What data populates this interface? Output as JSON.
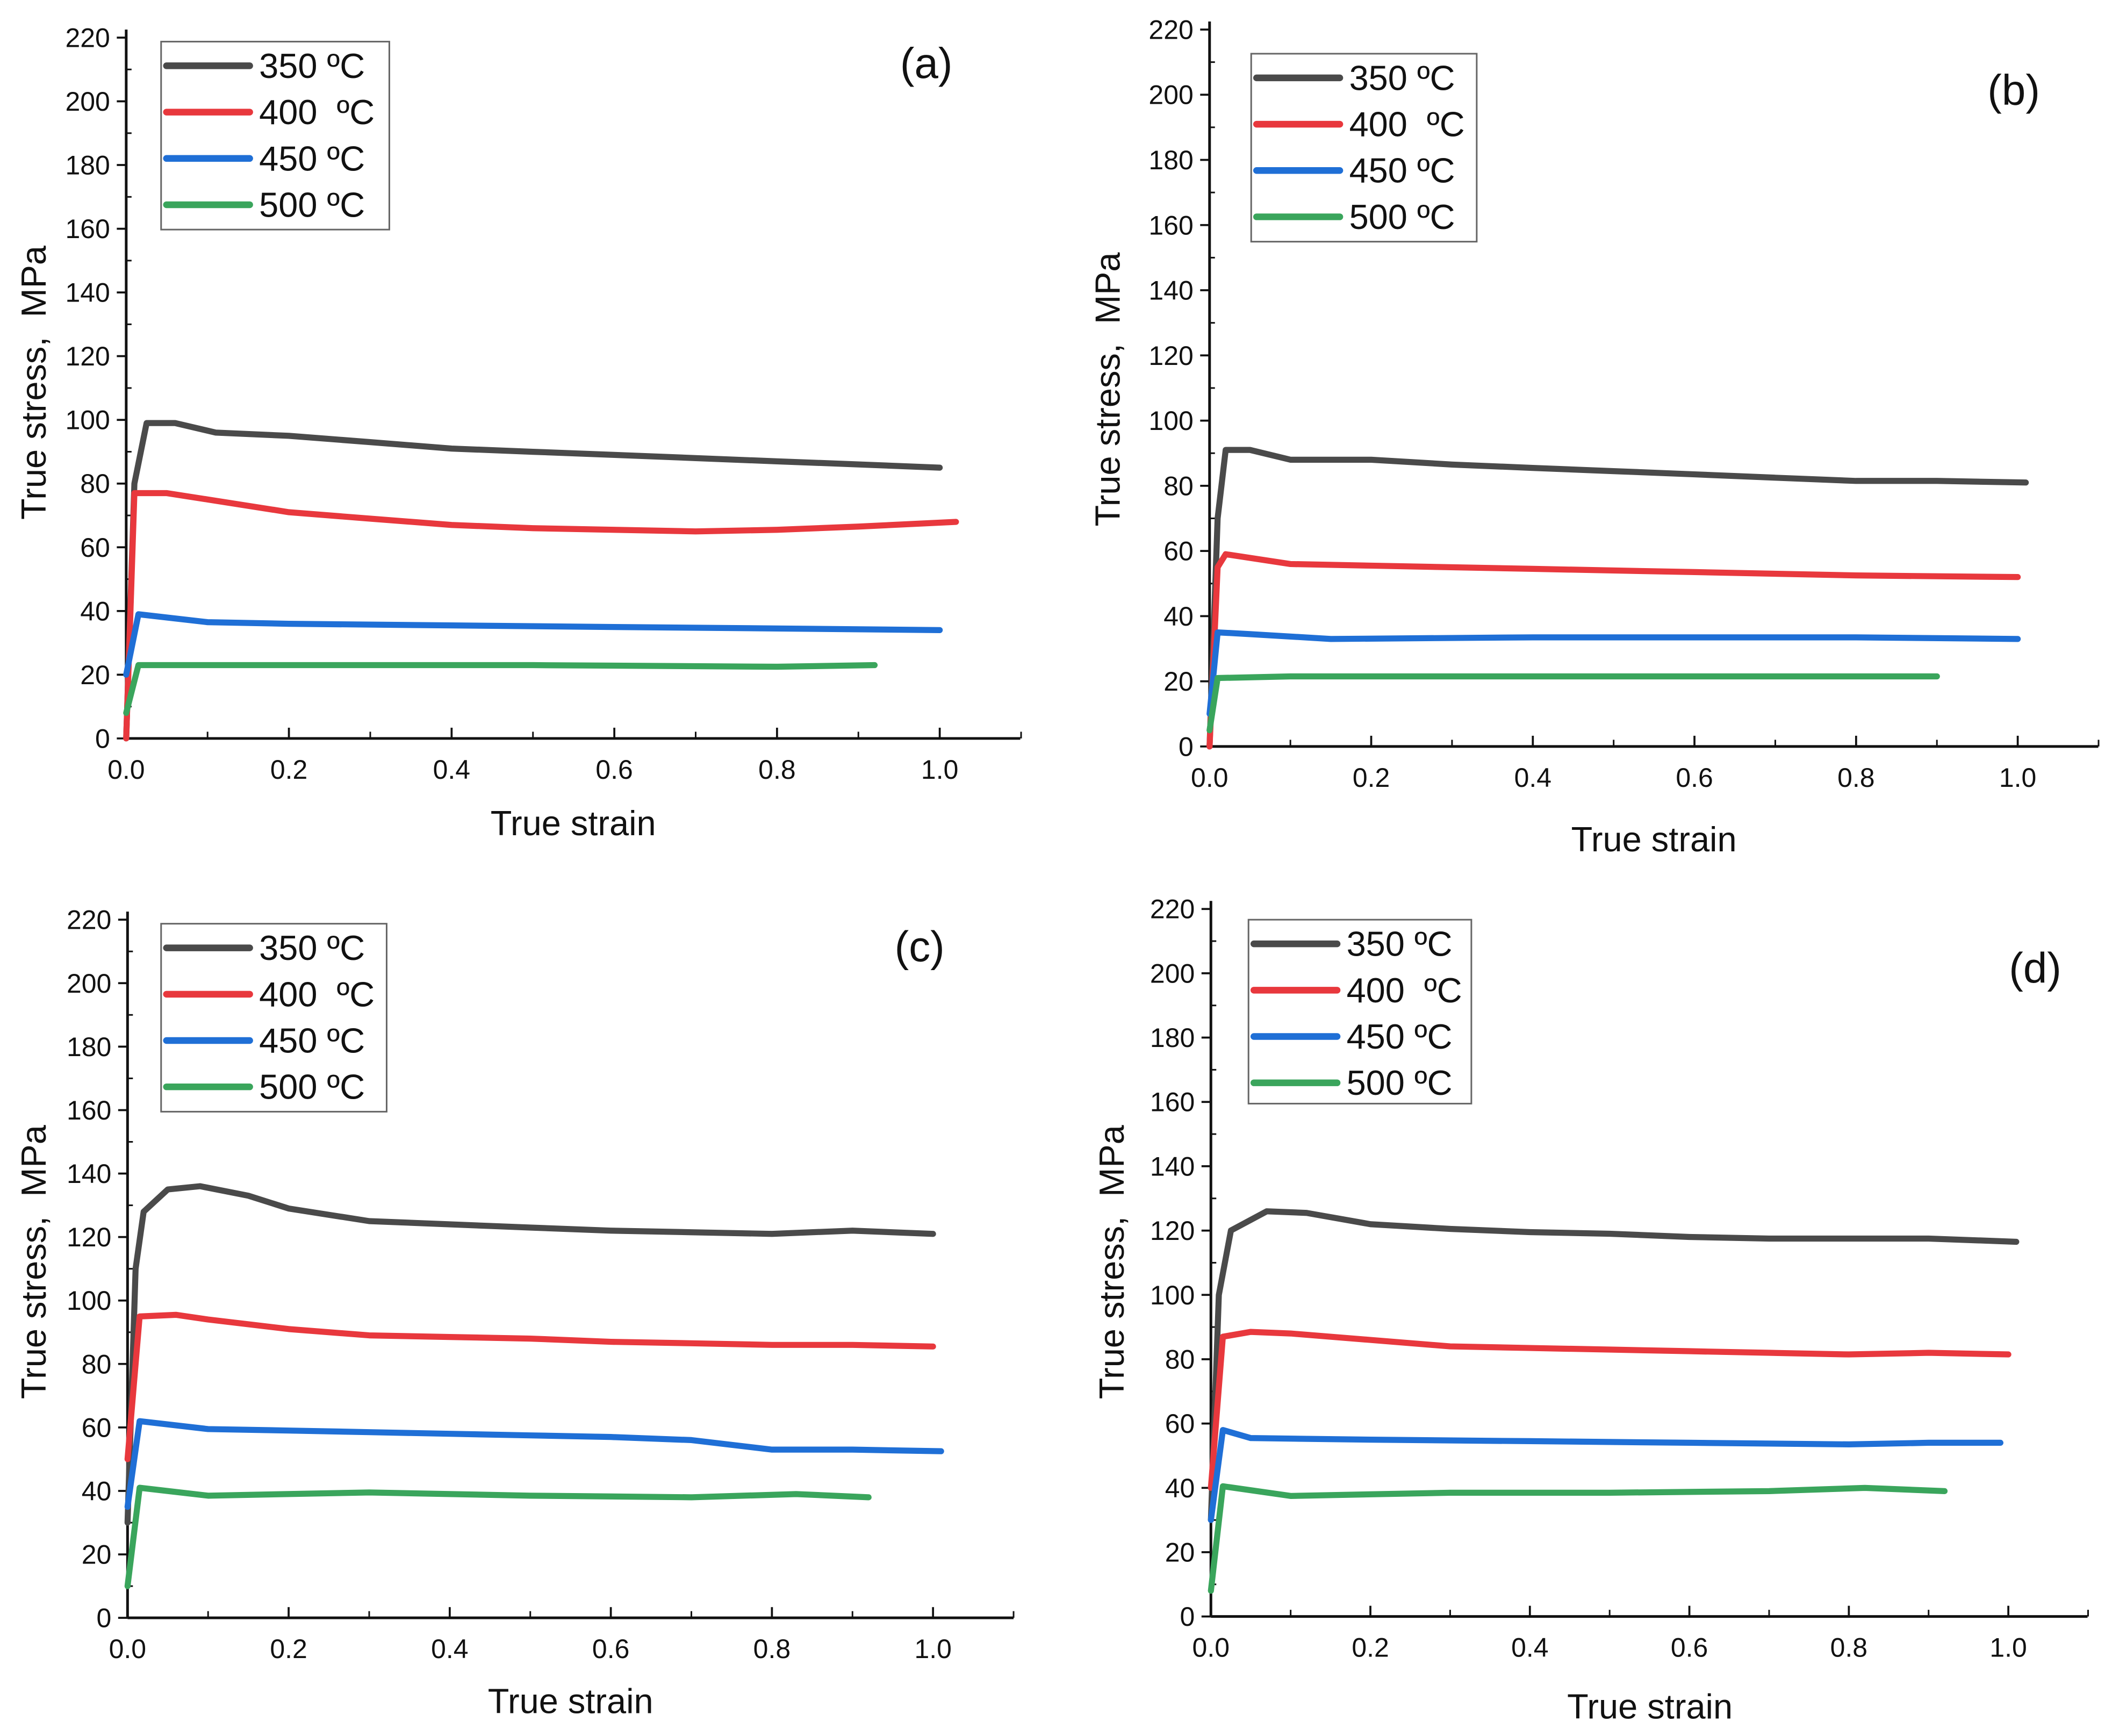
{
  "chart_data": [
    {
      "type": "line",
      "panel_label": "(a)",
      "xlabel": "True strain",
      "ylabel": "True stress,  MPa",
      "xlim": [
        0,
        1.1
      ],
      "ylim": [
        0,
        220
      ],
      "xticks": [
        "0.0",
        "0.2",
        "0.4",
        "0.6",
        "0.8",
        "1.0"
      ],
      "yticks": [
        "0",
        "20",
        "40",
        "60",
        "80",
        "100",
        "120",
        "140",
        "160",
        "180",
        "200",
        "220"
      ],
      "legend_position": "top-left",
      "series": [
        {
          "name": "350 ºC",
          "color": "#4a4a4a",
          "points": [
            [
              0,
              0
            ],
            [
              0.01,
              80
            ],
            [
              0.025,
              99
            ],
            [
              0.06,
              99
            ],
            [
              0.11,
              96
            ],
            [
              0.2,
              95
            ],
            [
              0.3,
              93
            ],
            [
              0.4,
              91
            ],
            [
              0.5,
              90
            ],
            [
              0.6,
              89
            ],
            [
              0.7,
              88
            ],
            [
              0.8,
              87
            ],
            [
              0.9,
              86
            ],
            [
              1.0,
              85
            ]
          ]
        },
        {
          "name": "400  ºC",
          "color": "#e8383d",
          "points": [
            [
              0,
              0
            ],
            [
              0.01,
              77
            ],
            [
              0.05,
              77
            ],
            [
              0.1,
              75
            ],
            [
              0.2,
              71
            ],
            [
              0.3,
              69
            ],
            [
              0.4,
              67
            ],
            [
              0.5,
              66
            ],
            [
              0.6,
              65.5
            ],
            [
              0.7,
              65
            ],
            [
              0.8,
              65.5
            ],
            [
              0.9,
              66.5
            ],
            [
              1.02,
              68
            ]
          ]
        },
        {
          "name": "450 ºC",
          "color": "#1f6fd6",
          "points": [
            [
              0,
              20
            ],
            [
              0.015,
              39
            ],
            [
              0.1,
              36.5
            ],
            [
              0.2,
              36
            ],
            [
              0.4,
              35.5
            ],
            [
              0.6,
              35
            ],
            [
              0.8,
              34.5
            ],
            [
              1.0,
              34
            ]
          ]
        },
        {
          "name": "500 ºC",
          "color": "#3aa55c",
          "points": [
            [
              0,
              8
            ],
            [
              0.015,
              23
            ],
            [
              0.2,
              23
            ],
            [
              0.5,
              23
            ],
            [
              0.8,
              22.5
            ],
            [
              0.92,
              23
            ]
          ]
        }
      ]
    },
    {
      "type": "line",
      "panel_label": "(b)",
      "xlabel": "True strain",
      "ylabel": "True stress,  MPa",
      "xlim": [
        0,
        1.1
      ],
      "ylim": [
        0,
        220
      ],
      "xticks": [
        "0.0",
        "0.2",
        "0.4",
        "0.6",
        "0.8",
        "1.0"
      ],
      "yticks": [
        "0",
        "20",
        "40",
        "60",
        "80",
        "100",
        "120",
        "140",
        "160",
        "180",
        "200",
        "220"
      ],
      "legend_position": "top-left",
      "series": [
        {
          "name": "350 ºC",
          "color": "#4a4a4a",
          "points": [
            [
              0,
              0
            ],
            [
              0.01,
              70
            ],
            [
              0.02,
              91
            ],
            [
              0.05,
              91
            ],
            [
              0.1,
              88
            ],
            [
              0.2,
              88
            ],
            [
              0.3,
              86.5
            ],
            [
              0.4,
              85.5
            ],
            [
              0.5,
              84.5
            ],
            [
              0.6,
              83.5
            ],
            [
              0.7,
              82.5
            ],
            [
              0.8,
              81.5
            ],
            [
              0.9,
              81.5
            ],
            [
              1.01,
              81
            ]
          ]
        },
        {
          "name": "400  ºC",
          "color": "#e8383d",
          "points": [
            [
              0,
              0
            ],
            [
              0.01,
              55
            ],
            [
              0.02,
              59
            ],
            [
              0.1,
              56
            ],
            [
              0.2,
              55.5
            ],
            [
              0.4,
              54.5
            ],
            [
              0.6,
              53.5
            ],
            [
              0.8,
              52.5
            ],
            [
              1.0,
              52
            ]
          ]
        },
        {
          "name": "450 ºC",
          "color": "#1f6fd6",
          "points": [
            [
              0,
              10
            ],
            [
              0.01,
              35
            ],
            [
              0.05,
              34.5
            ],
            [
              0.15,
              33
            ],
            [
              0.4,
              33.5
            ],
            [
              0.6,
              33.5
            ],
            [
              0.8,
              33.5
            ],
            [
              1.0,
              33
            ]
          ]
        },
        {
          "name": "500 ºC",
          "color": "#3aa55c",
          "points": [
            [
              0,
              5
            ],
            [
              0.01,
              21
            ],
            [
              0.1,
              21.5
            ],
            [
              0.5,
              21.5
            ],
            [
              0.9,
              21.5
            ]
          ]
        }
      ]
    },
    {
      "type": "line",
      "panel_label": "(c)",
      "xlabel": "True strain",
      "ylabel": "True stress,  MPa",
      "xlim": [
        0,
        1.1
      ],
      "ylim": [
        0,
        220
      ],
      "xticks": [
        "0.0",
        "0.2",
        "0.4",
        "0.6",
        "0.8",
        "1.0"
      ],
      "yticks": [
        "0",
        "20",
        "40",
        "60",
        "80",
        "100",
        "120",
        "140",
        "160",
        "180",
        "200",
        "220"
      ],
      "legend_position": "top-left",
      "series": [
        {
          "name": "350 ºC",
          "color": "#4a4a4a",
          "points": [
            [
              0,
              30
            ],
            [
              0.01,
              110
            ],
            [
              0.02,
              128
            ],
            [
              0.05,
              135
            ],
            [
              0.09,
              136
            ],
            [
              0.15,
              133
            ],
            [
              0.2,
              129
            ],
            [
              0.3,
              125
            ],
            [
              0.4,
              124
            ],
            [
              0.5,
              123
            ],
            [
              0.6,
              122
            ],
            [
              0.7,
              121.5
            ],
            [
              0.8,
              121
            ],
            [
              0.9,
              122
            ],
            [
              1.0,
              121
            ]
          ]
        },
        {
          "name": "400  ºC",
          "color": "#e8383d",
          "points": [
            [
              0,
              50
            ],
            [
              0.015,
              95
            ],
            [
              0.06,
              95.5
            ],
            [
              0.1,
              94
            ],
            [
              0.2,
              91
            ],
            [
              0.3,
              89
            ],
            [
              0.4,
              88.5
            ],
            [
              0.5,
              88
            ],
            [
              0.6,
              87
            ],
            [
              0.7,
              86.5
            ],
            [
              0.8,
              86
            ],
            [
              0.9,
              86
            ],
            [
              1.0,
              85.5
            ]
          ]
        },
        {
          "name": "450 ºC",
          "color": "#1f6fd6",
          "points": [
            [
              0,
              35
            ],
            [
              0.015,
              62
            ],
            [
              0.1,
              59.5
            ],
            [
              0.2,
              59
            ],
            [
              0.3,
              58.5
            ],
            [
              0.4,
              58
            ],
            [
              0.5,
              57.5
            ],
            [
              0.6,
              57
            ],
            [
              0.7,
              56
            ],
            [
              0.8,
              53
            ],
            [
              0.9,
              53
            ],
            [
              1.01,
              52.5
            ]
          ]
        },
        {
          "name": "500 ºC",
          "color": "#3aa55c",
          "points": [
            [
              0,
              10
            ],
            [
              0.015,
              41
            ],
            [
              0.1,
              38.5
            ],
            [
              0.3,
              39.5
            ],
            [
              0.5,
              38.5
            ],
            [
              0.7,
              38
            ],
            [
              0.83,
              39
            ],
            [
              0.92,
              38
            ]
          ]
        }
      ]
    },
    {
      "type": "line",
      "panel_label": "(d)",
      "xlabel": "True strain",
      "ylabel": "True stress,  MPa",
      "xlim": [
        0,
        1.1
      ],
      "ylim": [
        0,
        220
      ],
      "xticks": [
        "0.0",
        "0.2",
        "0.4",
        "0.6",
        "0.8",
        "1.0"
      ],
      "yticks": [
        "0",
        "20",
        "40",
        "60",
        "80",
        "100",
        "120",
        "140",
        "160",
        "180",
        "200",
        "220"
      ],
      "legend_position": "top-left",
      "series": [
        {
          "name": "350 ºC",
          "color": "#4a4a4a",
          "points": [
            [
              0,
              30
            ],
            [
              0.01,
              100
            ],
            [
              0.025,
              120
            ],
            [
              0.07,
              126
            ],
            [
              0.12,
              125.5
            ],
            [
              0.2,
              122
            ],
            [
              0.3,
              120.5
            ],
            [
              0.4,
              119.5
            ],
            [
              0.5,
              119
            ],
            [
              0.6,
              118
            ],
            [
              0.7,
              117.5
            ],
            [
              0.8,
              117.5
            ],
            [
              0.9,
              117.5
            ],
            [
              1.01,
              116.5
            ]
          ]
        },
        {
          "name": "400  ºC",
          "color": "#e8383d",
          "points": [
            [
              0,
              40
            ],
            [
              0.015,
              87
            ],
            [
              0.05,
              88.5
            ],
            [
              0.1,
              88
            ],
            [
              0.2,
              86
            ],
            [
              0.3,
              84
            ],
            [
              0.4,
              83.5
            ],
            [
              0.5,
              83
            ],
            [
              0.6,
              82.5
            ],
            [
              0.7,
              82
            ],
            [
              0.8,
              81.5
            ],
            [
              0.9,
              82
            ],
            [
              1.0,
              81.5
            ]
          ]
        },
        {
          "name": "450 ºC",
          "color": "#1f6fd6",
          "points": [
            [
              0,
              30
            ],
            [
              0.015,
              58
            ],
            [
              0.05,
              55.5
            ],
            [
              0.2,
              55
            ],
            [
              0.4,
              54.5
            ],
            [
              0.6,
              54
            ],
            [
              0.8,
              53.5
            ],
            [
              0.9,
              54
            ],
            [
              0.99,
              54
            ]
          ]
        },
        {
          "name": "500 ºC",
          "color": "#3aa55c",
          "points": [
            [
              0,
              8
            ],
            [
              0.015,
              40.5
            ],
            [
              0.1,
              37.5
            ],
            [
              0.3,
              38.5
            ],
            [
              0.5,
              38.5
            ],
            [
              0.7,
              39
            ],
            [
              0.82,
              40
            ],
            [
              0.92,
              39
            ]
          ]
        }
      ]
    }
  ]
}
